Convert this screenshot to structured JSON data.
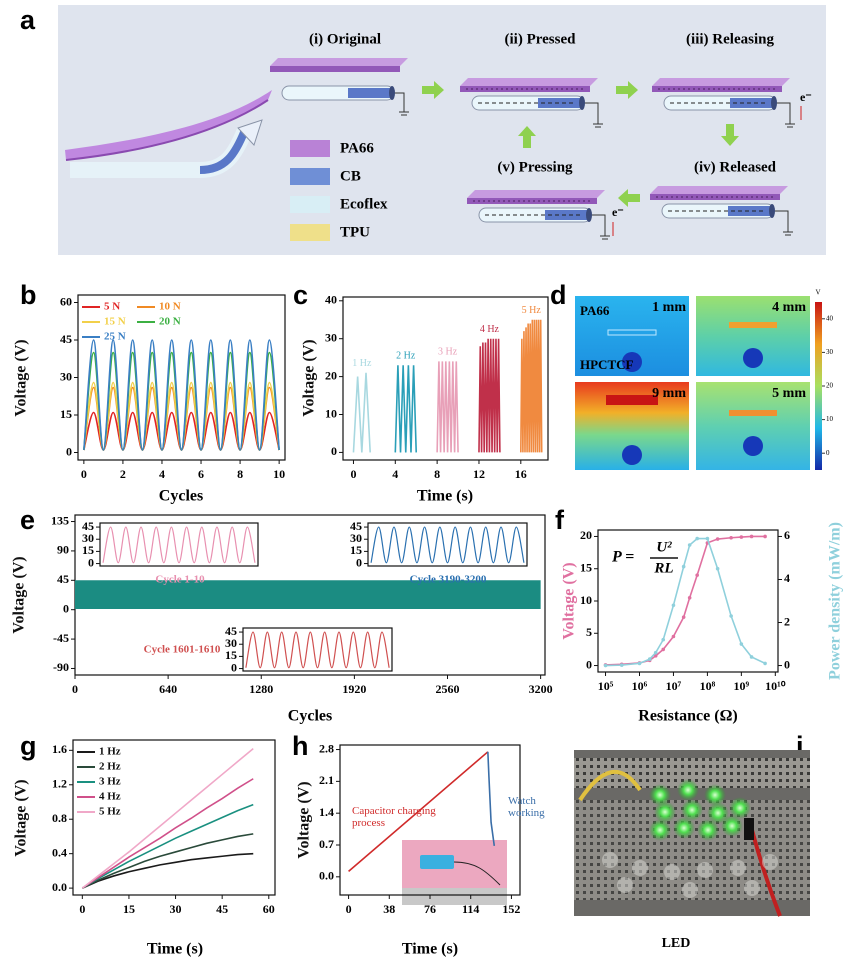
{
  "diagram": {
    "panel": "a",
    "states": [
      "(i) Original",
      "(ii) Pressed",
      "(iii) Releasing",
      "(iv) Released",
      "(v) Pressing"
    ],
    "materials": [
      "PA66",
      "CB",
      "Ecoflex",
      "TPU"
    ],
    "electron": "e⁻"
  },
  "simulation": {
    "panel": "d",
    "materials": [
      "PA66",
      "HPCTCF"
    ],
    "gaps": [
      "1 mm",
      "4 mm",
      "9 mm",
      "5 mm"
    ],
    "colorbar": {
      "unit": "V",
      "lim": [
        -5,
        45
      ],
      "ticks": [
        40,
        30,
        20,
        10,
        0
      ]
    }
  },
  "photo": {
    "panel": "i",
    "caption": "LED"
  },
  "chart_data": [
    {
      "type": "line",
      "panel": "b",
      "xlabel": "Cycles",
      "ylabel": "Voltage (V)",
      "smooth": true,
      "legend": "upper left",
      "legend_columns": 2,
      "legend_text": "colored",
      "xlim": [
        -0.3,
        10.3
      ],
      "xticks": [
        0,
        2,
        4,
        6,
        8,
        10
      ],
      "ylim": [
        -3,
        63
      ],
      "yticks": [
        0,
        15,
        30,
        45,
        60
      ],
      "x": [
        0,
        0.5,
        1,
        1.5,
        2,
        2.5,
        3,
        3.5,
        4,
        4.5,
        5,
        5.5,
        6,
        6.5,
        7,
        7.5,
        8,
        8.5,
        9,
        9.5,
        10
      ],
      "series": [
        {
          "name": "5 N",
          "color": "#e02424",
          "values": [
            1,
            16,
            1,
            16,
            1,
            16,
            1,
            16,
            1,
            16,
            1,
            16,
            1,
            16,
            1,
            16,
            1,
            16,
            1,
            16,
            1
          ]
        },
        {
          "name": "10 N",
          "color": "#f08a24",
          "values": [
            1,
            26,
            1,
            26,
            1,
            26,
            1,
            26,
            1,
            26,
            1,
            26,
            1,
            26,
            1,
            26,
            1,
            26,
            1,
            26,
            1
          ]
        },
        {
          "name": "15 N",
          "color": "#f2d04a",
          "values": [
            1,
            28,
            1,
            28,
            1,
            28,
            1,
            28,
            1,
            28,
            1,
            28,
            1,
            28,
            1,
            28,
            1,
            28,
            1,
            28,
            1
          ]
        },
        {
          "name": "20 N",
          "color": "#3cb043",
          "values": [
            1,
            40,
            1,
            40,
            1,
            40,
            1,
            40,
            1,
            40,
            1,
            40,
            1,
            40,
            1,
            40,
            1,
            40,
            1,
            40,
            1
          ]
        },
        {
          "name": "25 N",
          "color": "#3a7fc4",
          "values": [
            1,
            45,
            1,
            45,
            1,
            45,
            1,
            45,
            1,
            45,
            1,
            45,
            1,
            45,
            1,
            45,
            1,
            45,
            1,
            45,
            1
          ]
        }
      ]
    },
    {
      "type": "line",
      "panel": "c",
      "xlabel": "Time (s)",
      "ylabel": "Voltage (V)",
      "legend": "inline",
      "xlim": [
        -1,
        18.6
      ],
      "xticks": [
        0,
        4,
        8,
        12,
        16
      ],
      "ylim": [
        -2,
        41
      ],
      "yticks": [
        0,
        10,
        20,
        30,
        40
      ],
      "series": [
        {
          "name": "1 Hz",
          "color": "#a8d8e0",
          "x": [
            0,
            0.4,
            0.8,
            1.2,
            1.6
          ],
          "values": [
            0,
            20,
            0,
            21,
            0
          ]
        },
        {
          "name": "2 Hz",
          "color": "#2a9fb8",
          "x": [
            4,
            4.25,
            4.5,
            4.75,
            5,
            5.25,
            5.5,
            5.75,
            6
          ],
          "values": [
            0,
            23,
            0,
            23,
            0,
            23,
            0,
            23,
            0
          ]
        },
        {
          "name": "3 Hz",
          "color": "#e8a0b8",
          "x": [
            8,
            8.17,
            8.33,
            8.5,
            8.67,
            8.83,
            9,
            9.17,
            9.33,
            9.5,
            9.67,
            9.83,
            10
          ],
          "values": [
            0,
            24,
            0,
            24,
            0,
            24,
            0,
            24,
            0,
            24,
            0,
            24,
            0
          ]
        },
        {
          "name": "4 Hz",
          "color": "#c0304a",
          "x": [
            12,
            12.125,
            12.25,
            12.375,
            12.5,
            12.625,
            12.75,
            12.875,
            13,
            13.125,
            13.25,
            13.375,
            13.5,
            13.625,
            13.75,
            13.875,
            14
          ],
          "values": [
            0,
            28,
            0,
            29,
            0,
            29,
            0,
            30,
            0,
            30,
            0,
            30,
            0,
            30,
            0,
            30,
            0
          ]
        },
        {
          "name": "5 Hz",
          "color": "#f08a40",
          "x": [
            16,
            16.1,
            16.2,
            16.3,
            16.4,
            16.5,
            16.6,
            16.7,
            16.8,
            16.9,
            17,
            17.1,
            17.2,
            17.3,
            17.4,
            17.5,
            17.6,
            17.7,
            17.8,
            17.9,
            18
          ],
          "values": [
            0,
            30,
            0,
            32,
            0,
            33,
            0,
            34,
            0,
            34,
            0,
            35,
            0,
            35,
            0,
            35,
            0,
            35,
            0,
            35,
            0
          ]
        }
      ]
    },
    {
      "type": "band",
      "panel": "e",
      "xlabel": "Cycles",
      "ylabel": "Voltage (V)",
      "xlim": [
        0,
        3230
      ],
      "xticks": [
        0,
        640,
        1280,
        1920,
        2560,
        3200
      ],
      "ylim": [
        -100,
        145
      ],
      "yticks": [
        135,
        90,
        45,
        0,
        -45,
        -90
      ],
      "series": [
        {
          "color": "#1b8c82",
          "x": [
            0,
            3200
          ],
          "low": [
            1,
            1
          ],
          "high": [
            45,
            45
          ]
        }
      ]
    },
    {
      "type": "line",
      "title": "Cycle 1-10",
      "smooth": true,
      "xlim": [
        -0.2,
        10.2
      ],
      "ylim": [
        -3,
        50
      ],
      "yticks": [
        0,
        15,
        30,
        45
      ],
      "x": [
        0,
        0.5,
        1,
        1.5,
        2,
        2.5,
        3,
        3.5,
        4,
        4.5,
        5,
        5.5,
        6,
        6.5,
        7,
        7.5,
        8,
        8.5,
        9,
        9.5,
        10
      ],
      "series": [
        {
          "color": "#e890b0",
          "values": [
            1,
            45,
            1,
            45,
            1,
            45,
            1,
            45,
            1,
            45,
            1,
            45,
            1,
            45,
            1,
            45,
            1,
            45,
            1,
            45,
            1
          ]
        }
      ]
    },
    {
      "type": "line",
      "title": "Cycle 3190-3200",
      "smooth": true,
      "xlim": [
        -0.2,
        10.2
      ],
      "ylim": [
        -3,
        50
      ],
      "yticks": [
        0,
        15,
        30,
        45
      ],
      "x": [
        0,
        0.5,
        1,
        1.5,
        2,
        2.5,
        3,
        3.5,
        4,
        4.5,
        5,
        5.5,
        6,
        6.5,
        7,
        7.5,
        8,
        8.5,
        9,
        9.5,
        10
      ],
      "series": [
        {
          "color": "#2a70b0",
          "values": [
            1,
            45,
            1,
            45,
            1,
            45,
            1,
            45,
            1,
            45,
            1,
            45,
            1,
            45,
            1,
            45,
            1,
            45,
            1,
            45,
            1
          ]
        }
      ]
    },
    {
      "type": "line",
      "title": "Cycle 1601-1610",
      "smooth": true,
      "xlim": [
        -0.2,
        10.2
      ],
      "ylim": [
        -3,
        50
      ],
      "yticks": [
        0,
        15,
        30,
        45
      ],
      "x": [
        0,
        0.5,
        1,
        1.5,
        2,
        2.5,
        3,
        3.5,
        4,
        4.5,
        5,
        5.5,
        6,
        6.5,
        7,
        7.5,
        8,
        8.5,
        9,
        9.5,
        10
      ],
      "series": [
        {
          "color": "#d05050",
          "values": [
            1,
            45,
            1,
            45,
            1,
            45,
            1,
            45,
            1,
            45,
            1,
            45,
            1,
            45,
            1,
            45,
            1,
            45,
            1,
            45,
            1
          ]
        }
      ]
    },
    {
      "type": "line",
      "panel": "f",
      "xlabel": "Resistance (Ω)",
      "ylabel": "Voltage (V)",
      "y2label": "Power density (mW/m)",
      "xlog": true,
      "markers": true,
      "formula": {
        "lhs": "P =",
        "numerator": "U²",
        "denominator": "RL"
      },
      "xlim": [
        60000,
        12000000000
      ],
      "xticks": [
        {
          "value": 100000,
          "label": "10⁵"
        },
        {
          "value": 1000000,
          "label": "10⁶"
        },
        {
          "value": 10000000,
          "label": "10⁷"
        },
        {
          "value": 100000000,
          "label": "10⁸"
        },
        {
          "value": 1000000000,
          "label": "10⁹"
        },
        {
          "value": 10000000000,
          "label": "10¹⁰"
        }
      ],
      "ylim": [
        -1,
        21
      ],
      "yticks": [
        0,
        5,
        10,
        15,
        20
      ],
      "y2lim": [
        -0.3,
        6.3
      ],
      "y2ticks": [
        0,
        2,
        4,
        6
      ],
      "x": [
        100000,
        300000,
        1000000,
        2000000,
        3000000,
        5000000,
        10000000,
        20000000,
        30000000,
        50000000,
        100000000,
        200000000,
        500000000,
        1000000000,
        2000000000,
        5000000000
      ],
      "series": [
        {
          "name": "Voltage",
          "color": "#e070a0",
          "values": [
            0.1,
            0.2,
            0.4,
            0.8,
            1.5,
            2.5,
            4.5,
            7.5,
            10.5,
            14,
            19,
            19.6,
            19.8,
            19.9,
            20,
            20
          ]
        },
        {
          "name": "Power density",
          "color": "#8fd0dc",
          "axis": "y2",
          "values": [
            0,
            0.02,
            0.1,
            0.3,
            0.6,
            1.2,
            2.8,
            4.6,
            5.6,
            5.9,
            5.9,
            4.5,
            2.3,
            1,
            0.4,
            0.1
          ]
        }
      ]
    },
    {
      "type": "line",
      "panel": "g",
      "xlabel": "Time (s)",
      "ylabel": "Voltage (V)",
      "legend": "upper left",
      "legend_columns": 1,
      "xlim": [
        -3,
        62
      ],
      "xticks": [
        0,
        15,
        30,
        45,
        60
      ],
      "ylim": [
        -0.08,
        1.72
      ],
      "yticks": [
        {
          "value": 0,
          "label": "0.0"
        },
        0.4,
        0.8,
        1.2,
        1.6
      ],
      "x": [
        0,
        5,
        10,
        15,
        20,
        25,
        30,
        35,
        40,
        45,
        50,
        55
      ],
      "series": [
        {
          "name": "1 Hz",
          "color": "#1a1a1a",
          "values": [
            0,
            0.08,
            0.14,
            0.19,
            0.23,
            0.27,
            0.3,
            0.33,
            0.35,
            0.37,
            0.39,
            0.4
          ]
        },
        {
          "name": "2 Hz",
          "color": "#2a4a3a",
          "values": [
            0,
            0.09,
            0.17,
            0.24,
            0.31,
            0.37,
            0.42,
            0.47,
            0.52,
            0.56,
            0.6,
            0.63
          ]
        },
        {
          "name": "3 Hz",
          "color": "#1a9080",
          "values": [
            0,
            0.11,
            0.21,
            0.31,
            0.4,
            0.49,
            0.58,
            0.66,
            0.74,
            0.82,
            0.9,
            0.97
          ]
        },
        {
          "name": "4 Hz",
          "color": "#d0508a",
          "values": [
            0,
            0.12,
            0.24,
            0.36,
            0.47,
            0.58,
            0.7,
            0.81,
            0.93,
            1.04,
            1.16,
            1.27
          ]
        },
        {
          "name": "5 Hz",
          "color": "#f0a8c8",
          "values": [
            0,
            0.14,
            0.28,
            0.42,
            0.57,
            0.72,
            0.87,
            1.02,
            1.17,
            1.32,
            1.47,
            1.62
          ]
        }
      ]
    },
    {
      "type": "line",
      "panel": "h",
      "xlabel": "Time (s)",
      "ylabel": "Voltage (V)",
      "legend": "inline",
      "xlim": [
        -8,
        160
      ],
      "xticks": [
        0,
        38,
        76,
        114,
        152
      ],
      "ylim": [
        -0.4,
        2.9
      ],
      "yticks": [
        {
          "value": 0,
          "label": "0.0"
        },
        0.7,
        1.4,
        2.1,
        2.8
      ],
      "series": [
        {
          "name": "Capacitor charging process",
          "color": "#d02a2a",
          "x": [
            0,
            130
          ],
          "values": [
            0.12,
            2.75
          ]
        },
        {
          "name": "Watch working",
          "color": "#3a6ea8",
          "x": [
            130,
            131,
            133,
            136
          ],
          "values": [
            2.75,
            2.2,
            1.2,
            0.68
          ]
        }
      ]
    }
  ]
}
